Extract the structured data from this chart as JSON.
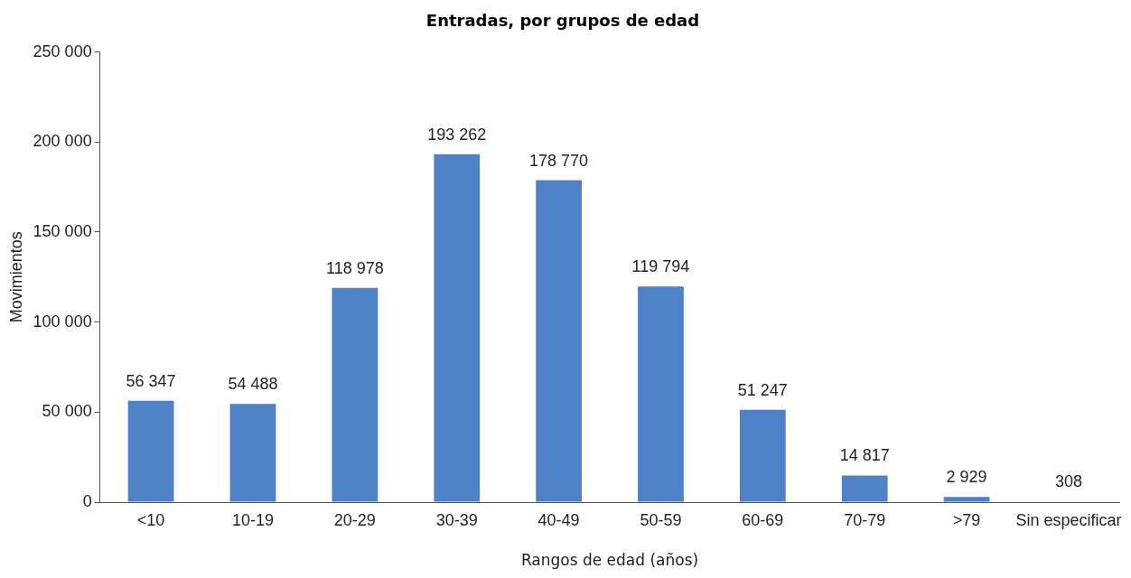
{
  "chart_data": {
    "type": "bar",
    "title": "Entradas, por grupos de edad",
    "xlabel": "Rangos de edad (años)",
    "ylabel": "Movimientos",
    "categories": [
      "<10",
      "10-19",
      "20-29",
      "30-39",
      "40-49",
      "50-59",
      "60-69",
      "70-79",
      ">79",
      "Sin especificar"
    ],
    "values": [
      56347,
      54488,
      118978,
      193262,
      178770,
      119794,
      51247,
      14817,
      2929,
      308
    ],
    "value_labels": [
      "56 347",
      "54 488",
      "118 978",
      "193 262",
      "178 770",
      "119 794",
      "51 247",
      "14 817",
      "2 929",
      "308"
    ],
    "color": "#4f81c7",
    "ylim": [
      0,
      250000
    ],
    "yticks": [
      {
        "value": 0,
        "label": "0"
      },
      {
        "value": 50000,
        "label": "50 000"
      },
      {
        "value": 100000,
        "label": "100 000"
      },
      {
        "value": 150000,
        "label": "150 000"
      },
      {
        "value": 200000,
        "label": "200 000"
      },
      {
        "value": 250000,
        "label": "250 000"
      }
    ],
    "grid": false,
    "legend": false
  }
}
